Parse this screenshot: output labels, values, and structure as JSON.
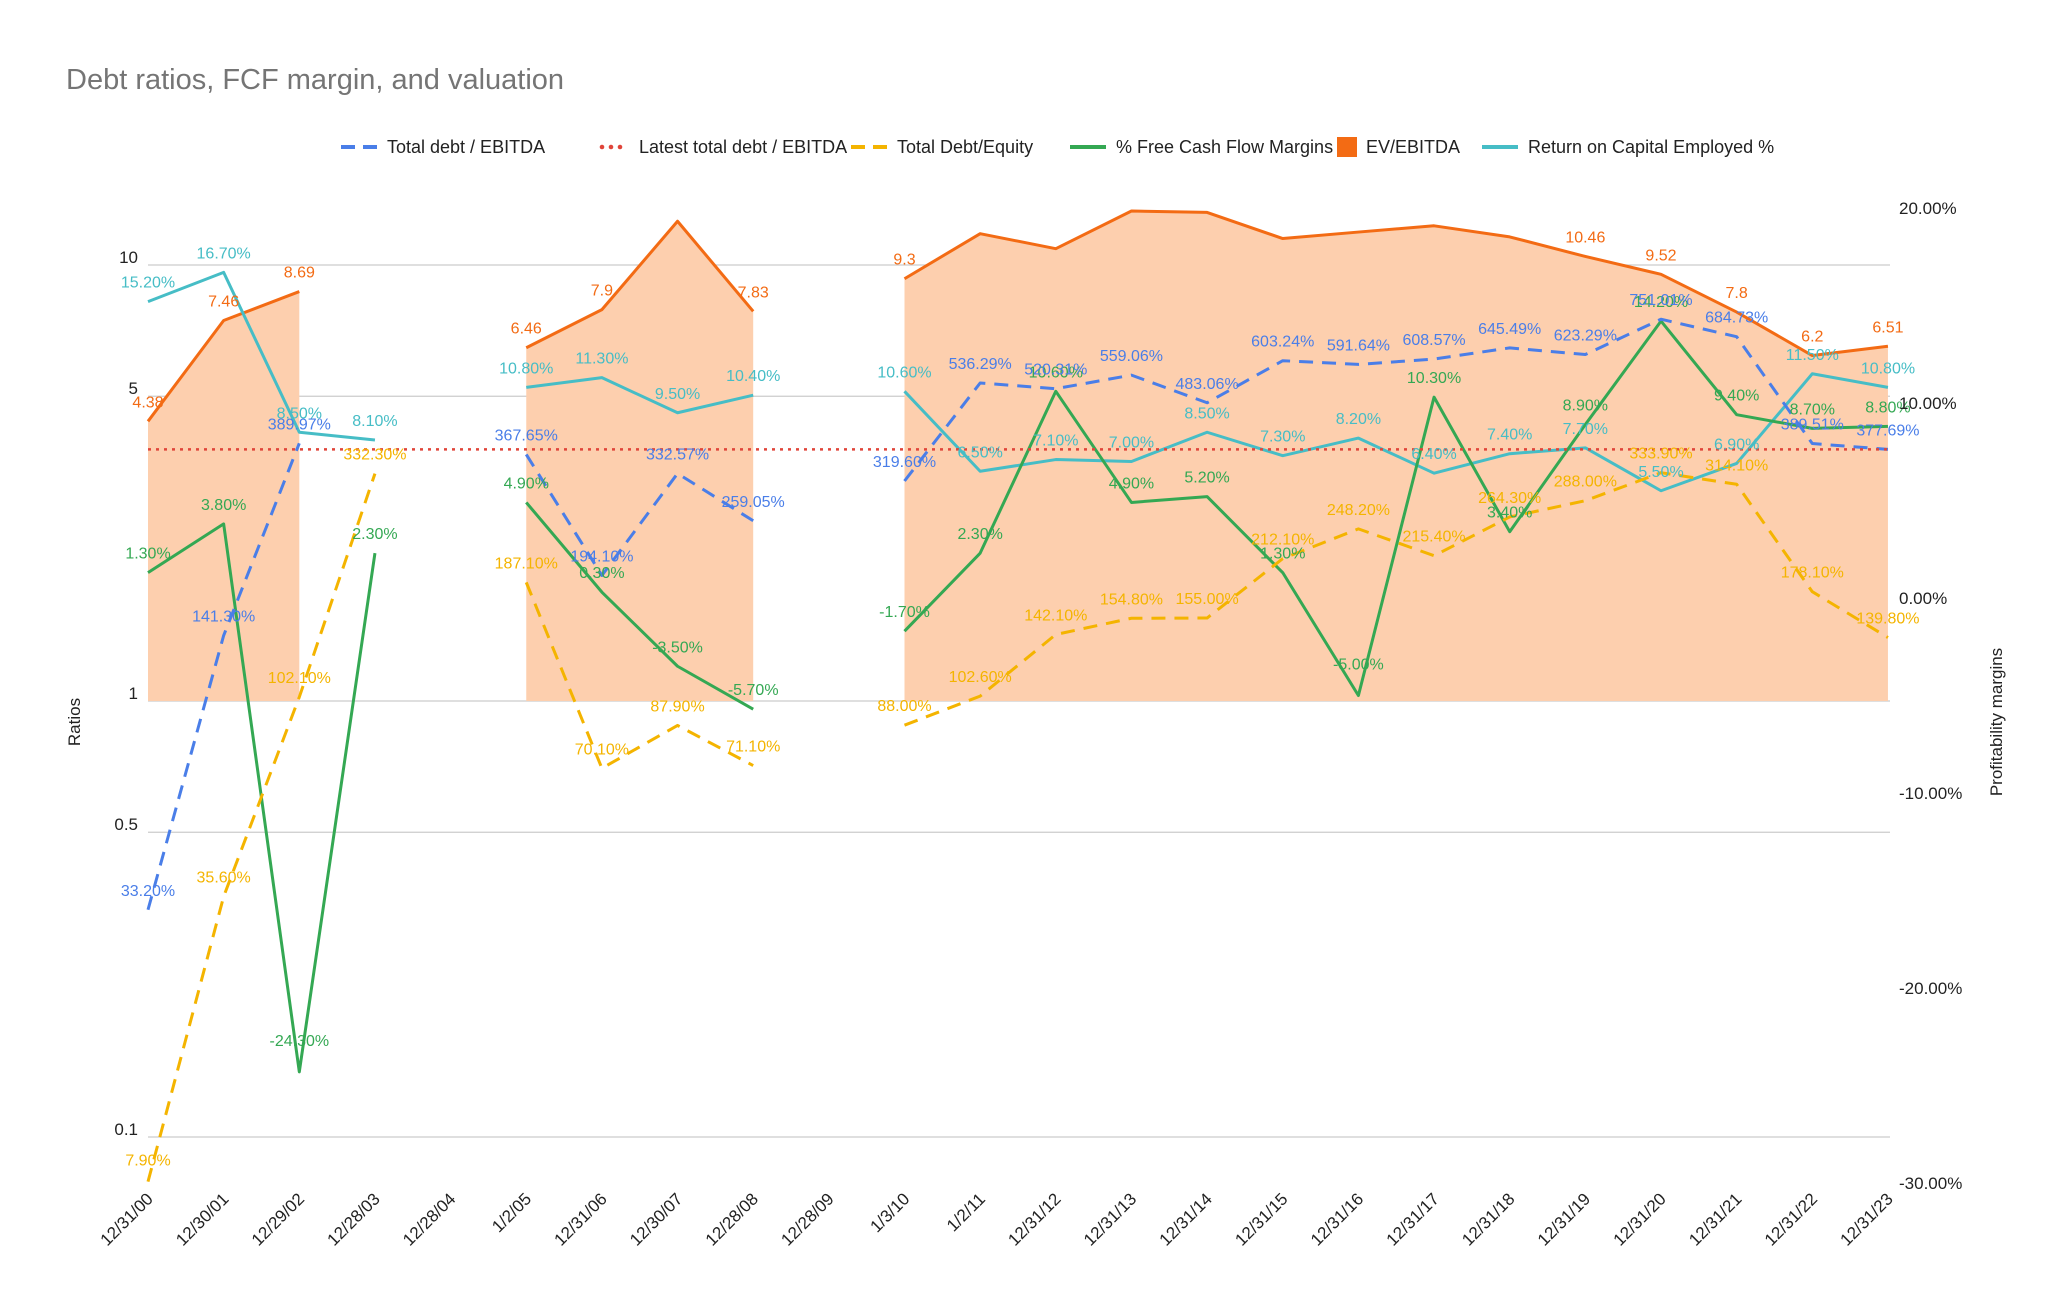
{
  "chart_data": {
    "type": "line",
    "title": "Debt ratios, FCF margin, and valuation",
    "y_left_label": "Ratios",
    "y_right_label": "Profitability margins",
    "y_left_scale": "log",
    "y_left_ticks": [
      {
        "v": 0.1,
        "label": "0.1"
      },
      {
        "v": 0.5,
        "label": "0.5"
      },
      {
        "v": 1,
        "label": "1"
      },
      {
        "v": 5,
        "label": "5"
      },
      {
        "v": 10,
        "label": "10"
      }
    ],
    "y_right_range": [
      -30,
      20
    ],
    "y_right_ticks": [
      {
        "v": 20,
        "label": "20.00%"
      },
      {
        "v": 10,
        "label": "10.00%"
      },
      {
        "v": 0,
        "label": "0.00%"
      },
      {
        "v": -10,
        "label": "-10.00%"
      },
      {
        "v": -20,
        "label": "-20.00%"
      },
      {
        "v": -30,
        "label": "-30.00%"
      }
    ],
    "grid": true,
    "legend_position": "top",
    "x": [
      "12/31/00",
      "12/30/01",
      "12/29/02",
      "12/28/03",
      "12/28/04",
      "1/2/05",
      "12/31/06",
      "12/30/07",
      "12/28/08",
      "12/28/09",
      "1/3/10",
      "1/2/11",
      "12/31/12",
      "12/31/13",
      "12/31/14",
      "12/31/15",
      "12/31/16",
      "12/31/17",
      "12/31/18",
      "12/31/19",
      "12/31/20",
      "12/31/21",
      "12/31/22",
      "12/31/23"
    ],
    "series": [
      {
        "key": "debt_ebitda",
        "name": "Total debt / EBITDA",
        "axis": "left",
        "style": "dashed",
        "color": "#4a7ee8",
        "values": [
          0.332,
          1.413,
          3.8997,
          null,
          null,
          3.6765,
          1.941,
          3.3257,
          2.5905,
          null,
          3.196,
          5.3629,
          5.2031,
          5.5906,
          4.8306,
          6.0324,
          5.9164,
          6.0857,
          6.4549,
          6.2329,
          7.5101,
          6.8473,
          3.8951,
          3.7769
        ],
        "labels": [
          "33.20%",
          "141.30%",
          "389.97%",
          "",
          "",
          "367.65%",
          "194.10%",
          "332.57%",
          "259.05%",
          "",
          "319.60%",
          "536.29%",
          "520.31%",
          "559.06%",
          "483.06%",
          "603.24%",
          "591.64%",
          "608.57%",
          "645.49%",
          "623.29%",
          "751.01%",
          "684.73%",
          "389.51%",
          "377.69%"
        ]
      },
      {
        "key": "latest",
        "name": "Latest total debt / EBITDA",
        "axis": "left",
        "style": "dotted",
        "color": "#e0453a",
        "constant": 3.7769
      },
      {
        "key": "debt_equity",
        "name": "Total Debt/Equity",
        "axis": "left",
        "style": "dashed",
        "color": "#f4b400",
        "values": [
          0.079,
          0.356,
          1.021,
          3.323,
          null,
          1.871,
          0.701,
          0.879,
          0.711,
          null,
          0.88,
          1.026,
          1.421,
          1.548,
          1.55,
          2.121,
          2.482,
          2.154,
          2.643,
          2.88,
          3.339,
          3.141,
          1.781,
          1.398
        ],
        "labels": [
          "7.90%",
          "35.60%",
          "102.10%",
          "332.30%",
          "",
          "187.10%",
          "70.10%",
          "87.90%",
          "71.10%",
          "",
          "88.00%",
          "102.60%",
          "142.10%",
          "154.80%",
          "155.00%",
          "212.10%",
          "248.20%",
          "215.40%",
          "264.30%",
          "288.00%",
          "333.90%",
          "314.10%",
          "178.10%",
          "139.80%"
        ]
      },
      {
        "key": "fcf",
        "name": "% Free Cash Flow Margins",
        "axis": "right",
        "style": "solid",
        "color": "#34a853",
        "values": [
          1.3,
          3.8,
          -24.3,
          2.3,
          null,
          4.9,
          0.3,
          -3.5,
          -5.7,
          null,
          -1.7,
          2.3,
          10.6,
          4.9,
          5.2,
          1.3,
          -5.0,
          10.3,
          3.4,
          8.9,
          14.2,
          9.4,
          8.7,
          8.8
        ],
        "labels": [
          "1.30%",
          "3.80%",
          "-24.30%",
          "2.30%",
          "",
          "4.90%",
          "0.30%",
          "-3.50%",
          "-5.70%",
          "",
          "-1.70%",
          "2.30%",
          "10.60%",
          "4.90%",
          "5.20%",
          "1.30%",
          "-5.00%",
          "10.30%",
          "3.40%",
          "8.90%",
          "14.20%",
          "9.40%",
          "8.70%",
          "8.80%"
        ]
      },
      {
        "key": "ev",
        "name": "EV/EBITDA",
        "axis": "left",
        "style": "area",
        "color": "#f36b14",
        "fill": "#fdcfae",
        "values": [
          4.38,
          7.46,
          8.69,
          null,
          null,
          6.46,
          7.9,
          12.6,
          7.83,
          null,
          9.3,
          11.8,
          10.9,
          13.3,
          13.2,
          11.5,
          11.9,
          12.3,
          11.6,
          10.46,
          9.52,
          7.8,
          6.2,
          6.51
        ],
        "labels": [
          "4.38",
          "7.46",
          "8.69",
          "",
          "",
          "6.46",
          "7.9",
          "",
          "7.83",
          "",
          "9.3",
          "",
          "",
          "",
          "",
          "",
          "",
          "",
          "",
          "10.46",
          "9.52",
          "7.8",
          "6.2",
          "6.51"
        ]
      },
      {
        "key": "roce",
        "name": "Return on Capital Employed %",
        "axis": "right",
        "style": "solid",
        "color": "#46bdc6",
        "values": [
          15.2,
          16.7,
          8.5,
          8.1,
          null,
          10.8,
          11.3,
          9.5,
          10.4,
          null,
          10.6,
          6.5,
          7.1,
          7.0,
          8.5,
          7.3,
          8.2,
          6.4,
          7.4,
          7.7,
          5.5,
          6.9,
          11.5,
          10.8
        ],
        "labels": [
          "15.20%",
          "16.70%",
          "8.50%",
          "8.10%",
          "",
          "10.80%",
          "11.30%",
          "9.50%",
          "10.40%",
          "",
          "10.60%",
          "6.50%",
          "7.10%",
          "7.00%",
          "8.50%",
          "7.30%",
          "8.20%",
          "6.40%",
          "7.40%",
          "7.70%",
          "5.50%",
          "6.90%",
          "11.50%",
          "10.80%"
        ]
      }
    ]
  }
}
